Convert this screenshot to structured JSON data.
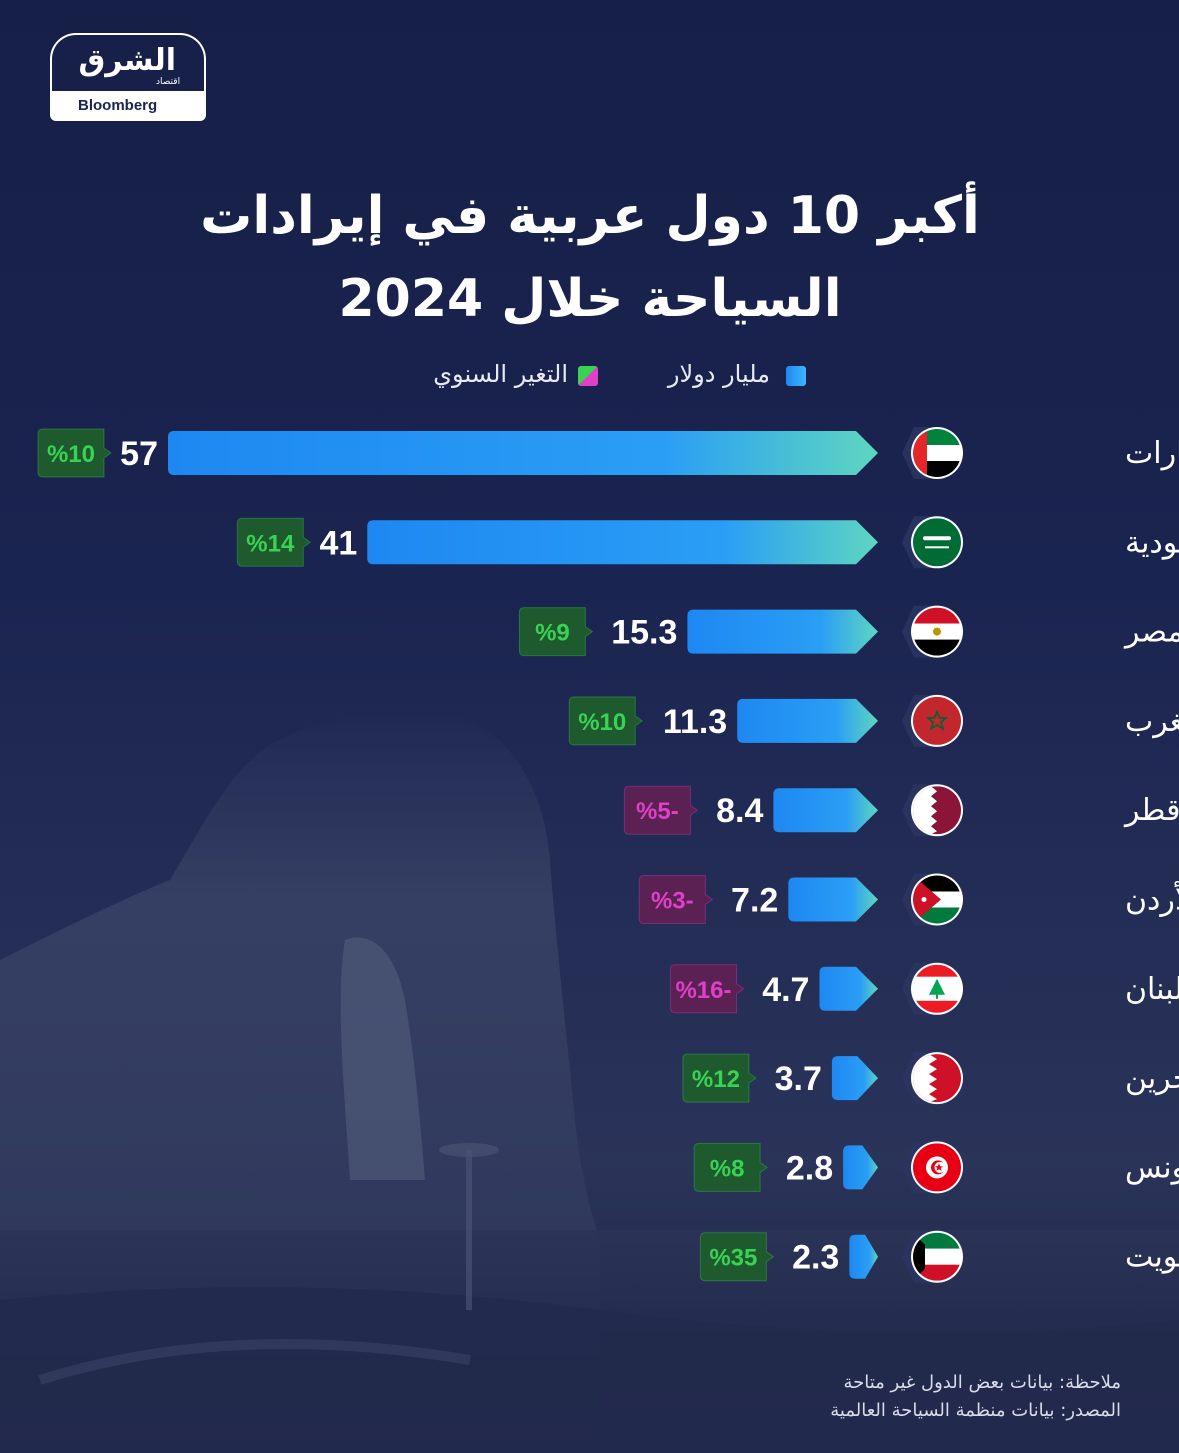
{
  "logo": {
    "arabic": "الشرق",
    "sub": "اقتصاد",
    "brand": "Bloomberg"
  },
  "title": {
    "line1": "أكبر 10 دول عربية في إيرادات",
    "line2": "السياحة خلال 2024"
  },
  "legend": {
    "value_label": "مليار دولار",
    "change_label": "التغير السنوي"
  },
  "colors": {
    "bar_start": "#1e88f2",
    "bar_end": "#5ed6c0",
    "positive": "#39d353",
    "negative": "#e040c8",
    "positive_bg": "#1f5a2e",
    "negative_bg": "#5a2152"
  },
  "chart_data": {
    "type": "bar",
    "orientation": "horizontal",
    "categories": [
      "الإمارات",
      "السعودية",
      "مصر",
      "المغرب",
      "قطر",
      "الأردن",
      "لبنان",
      "البحرين",
      "تونس",
      "الكويت"
    ],
    "series": [
      {
        "name": "مليار دولار",
        "values": [
          57,
          41,
          15.3,
          11.3,
          8.4,
          7.2,
          4.7,
          3.7,
          2.8,
          2.3
        ]
      },
      {
        "name": "التغير السنوي",
        "values": [
          10,
          14,
          9,
          10,
          -5,
          -3,
          -16,
          12,
          8,
          35
        ]
      }
    ],
    "value_labels": [
      "57",
      "41",
      "15.3",
      "11.3",
      "8.4",
      "7.2",
      "4.7",
      "3.7",
      "2.8",
      "2.3"
    ],
    "change_labels": [
      "%10",
      "%14",
      "%9",
      "%10",
      "%5-",
      "%3-",
      "%16-",
      "%12",
      "%8",
      "%35"
    ],
    "flags": [
      "uae-flag-icon",
      "saudi-flag-icon",
      "egypt-flag-icon",
      "morocco-flag-icon",
      "qatar-flag-icon",
      "jordan-flag-icon",
      "lebanon-flag-icon",
      "bahrain-flag-icon",
      "tunisia-flag-icon",
      "kuwait-flag-icon"
    ],
    "grid": false,
    "legend_position": "top"
  },
  "notes": {
    "note": "ملاحظة: بيانات بعض الدول غير متاحة",
    "source": "المصدر: بيانات منظمة السياحة العالمية"
  }
}
